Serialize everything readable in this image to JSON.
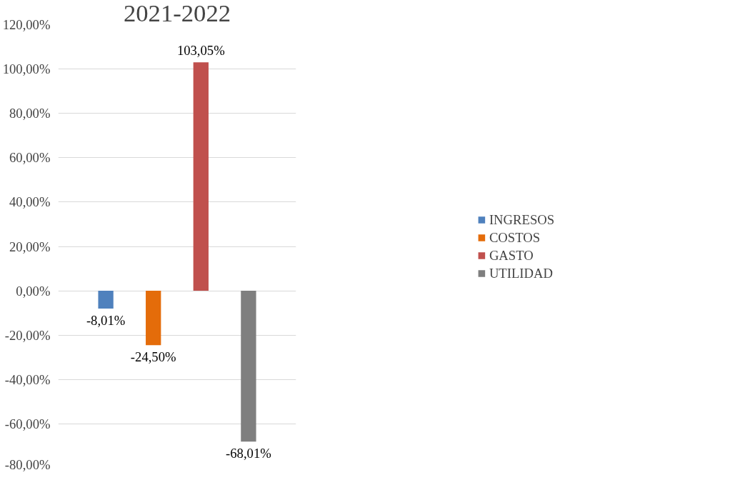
{
  "chart_data": {
    "type": "bar",
    "title": "2021-2022",
    "categories": [
      null
    ],
    "series": [
      {
        "name": "INGRESOS",
        "color": "#4f81bd",
        "values": [
          -8.01
        ],
        "value_labels": [
          "-8,01%"
        ]
      },
      {
        "name": "COSTOS",
        "color": "#e46c0a",
        "values": [
          -24.5
        ],
        "value_labels": [
          "-24,50%"
        ]
      },
      {
        "name": "GASTO",
        "color": "#c0504d",
        "values": [
          103.05
        ],
        "value_labels": [
          "103,05%"
        ]
      },
      {
        "name": "UTILIDAD",
        "color": "#7f7f7f",
        "values": [
          -68.01
        ],
        "value_labels": [
          "-68,01%"
        ]
      }
    ],
    "ylim": [
      -80,
      120
    ],
    "yticks": [
      {
        "value": -80,
        "label": "-80,00%"
      },
      {
        "value": -60,
        "label": "-60,00%"
      },
      {
        "value": -40,
        "label": "-40,00%"
      },
      {
        "value": -20,
        "label": "-20,00%"
      },
      {
        "value": 0,
        "label": "0,00%"
      },
      {
        "value": 20,
        "label": "20,00%"
      },
      {
        "value": 40,
        "label": "40,00%"
      },
      {
        "value": 60,
        "label": "60,00%"
      },
      {
        "value": 80,
        "label": "80,00%"
      },
      {
        "value": 100,
        "label": "100,00%"
      },
      {
        "value": 120,
        "label": "120,00%"
      }
    ],
    "grid": "y",
    "legend": "right"
  }
}
